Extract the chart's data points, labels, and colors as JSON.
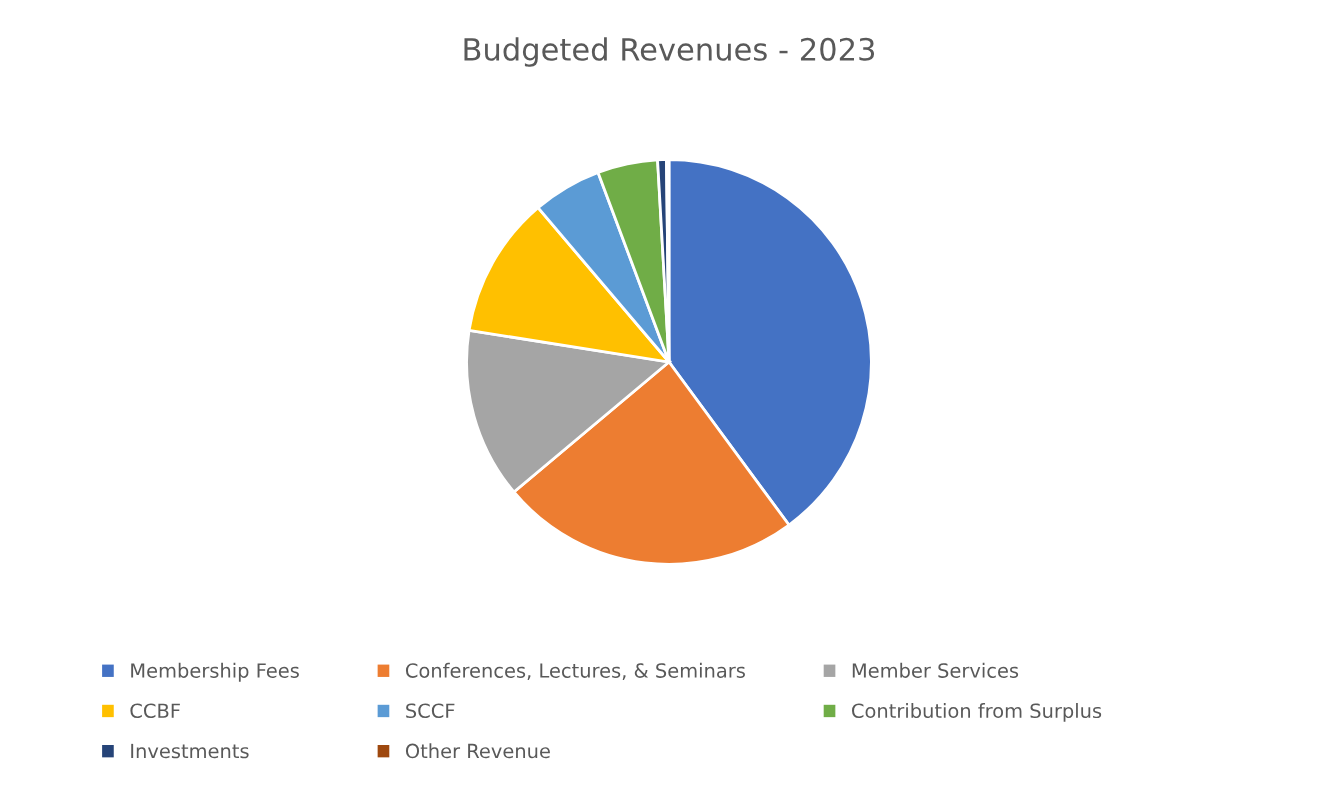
{
  "chart_data": {
    "type": "pie",
    "title": "Budgeted Revenues - 2023",
    "categories": [
      "Membership Fees",
      "Conferences, Lectures, & Seminars",
      "Member Services",
      "CCBF",
      "SCCF",
      "Contribution from Surplus",
      "Investments",
      "Other Revenue"
    ],
    "values": [
      39.9,
      24.0,
      13.6,
      11.3,
      5.5,
      4.8,
      0.7,
      0.2
    ],
    "colors": [
      "#4472c4",
      "#ed7d31",
      "#a5a5a5",
      "#ffc000",
      "#5b9bd5",
      "#70ad47",
      "#264478",
      "#9e480e"
    ],
    "legend": "bottom"
  }
}
